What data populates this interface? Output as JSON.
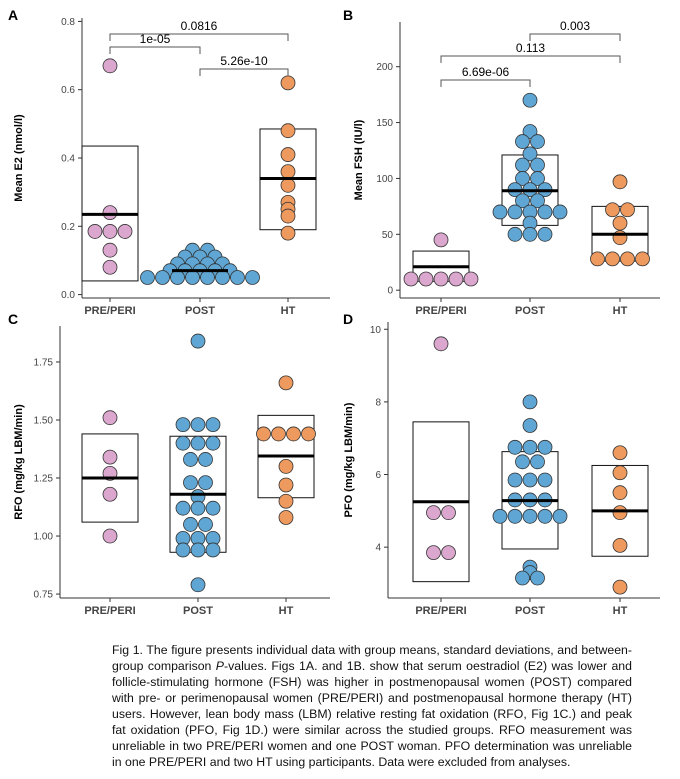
{
  "chart_data": [
    {
      "type": "dot",
      "panel": "A",
      "ylabel": "Mean E2 (nmol/l)",
      "categories": [
        "PRE/PERI",
        "POST",
        "HT"
      ],
      "colors": [
        "#dba7cf",
        "#5fa6d4",
        "#ee9a5e"
      ],
      "values": [
        [
          0.67,
          0.24,
          0.185,
          0.185,
          0.185,
          0.13,
          0.08
        ],
        [
          0.13,
          0.13,
          0.11,
          0.11,
          0.11,
          0.09,
          0.09,
          0.09,
          0.09,
          0.07,
          0.07,
          0.07,
          0.07,
          0.07,
          0.05,
          0.05,
          0.05,
          0.05,
          0.05,
          0.05,
          0.05,
          0.05
        ],
        [
          0.62,
          0.48,
          0.41,
          0.36,
          0.32,
          0.27,
          0.25,
          0.23,
          0.18
        ]
      ],
      "means": [
        0.235,
        0.07,
        0.34
      ],
      "box_low": [
        0.04,
        0.05,
        0.19
      ],
      "box_high": [
        0.435,
        0.095,
        0.485
      ],
      "ylim": [
        -0.01,
        0.81
      ],
      "yticks": [
        {
          "value": 0,
          "label": "0.0"
        },
        0.2,
        0.4,
        0.6,
        0.8
      ],
      "comparisons": [
        {
          "from": 0,
          "to": 2,
          "label": "0.0816"
        },
        {
          "from": 0,
          "to": 1,
          "label": "1e-05"
        },
        {
          "from": 1,
          "to": 2,
          "label": "5.26e-10"
        }
      ]
    },
    {
      "type": "dot",
      "panel": "B",
      "ylabel": "Mean FSH (IU/l)",
      "categories": [
        "PRE/PERI",
        "POST",
        "HT"
      ],
      "colors": [
        "#dba7cf",
        "#5fa6d4",
        "#ee9a5e"
      ],
      "values": [
        [
          45,
          10,
          10,
          10,
          10,
          10
        ],
        [
          170,
          142,
          133,
          133,
          122,
          112,
          112,
          100,
          100,
          90,
          90,
          90,
          80,
          80,
          70,
          70,
          70,
          70,
          70,
          60,
          50,
          50,
          50
        ],
        [
          97,
          72,
          72,
          60,
          47,
          28,
          28,
          28,
          28
        ]
      ],
      "means": [
        21,
        89,
        50
      ],
      "box_low": [
        8,
        58,
        26
      ],
      "box_high": [
        35,
        121,
        75
      ],
      "ylim": [
        -7,
        240
      ],
      "yticks": [
        0,
        50,
        100,
        150,
        200
      ],
      "comparisons": [
        {
          "from": 1,
          "to": 2,
          "label": "0.003"
        },
        {
          "from": 0,
          "to": 2,
          "label": "0.113"
        },
        {
          "from": 0,
          "to": 1,
          "label": "6.69e-06"
        }
      ]
    },
    {
      "type": "dot",
      "panel": "C",
      "ylabel": "RFO (mg/kg LBM/min)",
      "categories": [
        "PRE/PERI",
        "POST",
        "HT"
      ],
      "colors": [
        "#dba7cf",
        "#5fa6d4",
        "#ee9a5e"
      ],
      "values": [
        [
          1.51,
          1.34,
          1.27,
          1.18,
          1.0
        ],
        [
          1.84,
          1.48,
          1.48,
          1.48,
          1.4,
          1.4,
          1.4,
          1.33,
          1.33,
          1.23,
          1.23,
          1.17,
          1.12,
          1.12,
          1.12,
          1.05,
          1.05,
          0.99,
          0.99,
          0.99,
          0.94,
          0.94,
          0.94,
          0.79
        ],
        [
          1.66,
          1.44,
          1.44,
          1.44,
          1.44,
          1.3,
          1.22,
          1.15,
          1.08
        ]
      ],
      "means": [
        1.25,
        1.18,
        1.345
      ],
      "box_low": [
        1.06,
        0.93,
        1.165
      ],
      "box_high": [
        1.44,
        1.43,
        1.52
      ],
      "ylim": [
        0.733,
        1.905
      ],
      "yticks": [
        0.75,
        {
          "value": 1,
          "label": "1.00"
        },
        1.25,
        {
          "value": 1.5,
          "label": "1.50"
        },
        1.75
      ]
    },
    {
      "type": "dot",
      "panel": "D",
      "ylabel": "PFO (mg/kg LBM/min)",
      "categories": [
        "PRE/PERI",
        "POST",
        "HT"
      ],
      "colors": [
        "#dba7cf",
        "#5fa6d4",
        "#ee9a5e"
      ],
      "values": [
        [
          9.6,
          4.95,
          4.95,
          3.85,
          3.85
        ],
        [
          8.0,
          7.35,
          6.75,
          6.75,
          6.75,
          6.35,
          6.35,
          5.85,
          5.85,
          5.85,
          5.3,
          5.3,
          5.3,
          4.85,
          4.85,
          4.85,
          4.85,
          4.85,
          3.45,
          3.3,
          3.15,
          3.15
        ],
        [
          6.6,
          6.05,
          5.5,
          4.95,
          4.05,
          2.9
        ]
      ],
      "means": [
        5.25,
        5.28,
        5.0
      ],
      "box_low": [
        3.05,
        3.95,
        3.75
      ],
      "box_high": [
        7.45,
        6.63,
        6.25
      ],
      "ylim": [
        2.6,
        10.2
      ],
      "yticks": [
        4,
        6,
        8,
        10
      ]
    }
  ],
  "caption_before": "Fig 1. The figure presents individual data with group means, standard deviations, and between-group comparison ",
  "caption_italic": "P",
  "caption_after": "-values. Figs 1A. and 1B. show that serum oestradiol (E2) was lower and follicle-stimulating hormone (FSH) was higher in postmenopausal women (POST) compared with pre- or perimenopausal women (PRE/PERI) and postmenopausal hormone therapy (HT) users. However, lean body mass (LBM) relative resting fat oxidation (RFO, Fig 1C.) and peak fat oxidation (PFO, Fig 1D.) were similar across the studied groups. RFO measurement was unreliable in two PRE/PERI women and one POST woman. PFO determination was unreliable in one PRE/PERI and two HT using participants. Data were excluded from analyses."
}
